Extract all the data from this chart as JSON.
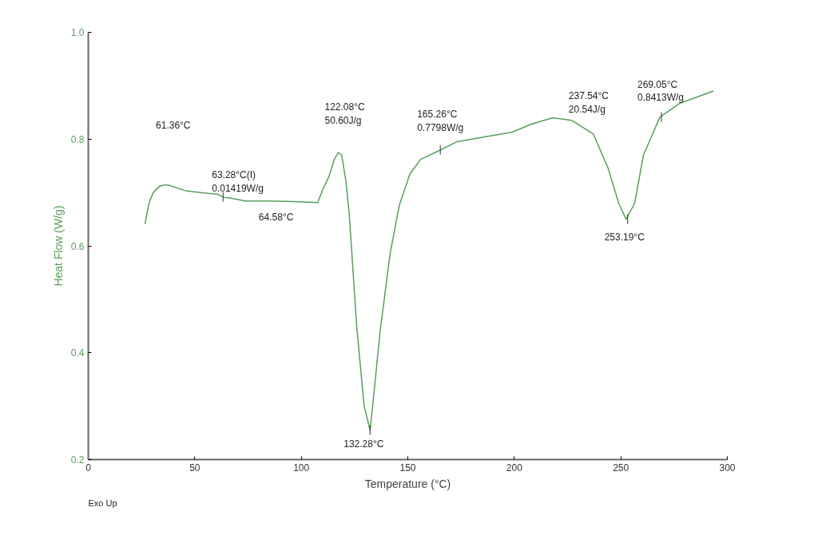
{
  "chart_data": {
    "type": "line",
    "xlabel": "Temperature (°C)",
    "ylabel": "Heat Flow (W/g)",
    "x": [
      26.6,
      28.5,
      30.5,
      33.6,
      35.5,
      37.5,
      46,
      55,
      57.5,
      60.6,
      63.7,
      66,
      74,
      86,
      97,
      107.7,
      110,
      113,
      115.5,
      117.4,
      119,
      121,
      122.5,
      126,
      129.5,
      132.3,
      133.5,
      137,
      141.7,
      146,
      151,
      156,
      165,
      173,
      199,
      208,
      218,
      227,
      237,
      244,
      249,
      252.5,
      256.5,
      260.6,
      268.3,
      277.6,
      293.4
    ],
    "series": [
      {
        "color": "#5a9e5a",
        "values": [
          0.641,
          0.68,
          0.7,
          0.712,
          0.714,
          0.714,
          0.703,
          0.699,
          0.698,
          0.697,
          0.691,
          0.69,
          0.684,
          0.684,
          0.683,
          0.681,
          0.705,
          0.73,
          0.762,
          0.775,
          0.77,
          0.72,
          0.66,
          0.45,
          0.3,
          0.255,
          0.3,
          0.44,
          0.586,
          0.676,
          0.735,
          0.762,
          0.779,
          0.795,
          0.813,
          0.828,
          0.84,
          0.835,
          0.81,
          0.746,
          0.68,
          0.65,
          0.68,
          0.77,
          0.841,
          0.867,
          0.89
        ]
      }
    ],
    "xlim": [
      0,
      300
    ],
    "xticks": [
      0,
      50,
      100,
      150,
      200,
      250,
      300
    ],
    "ylim": [
      0.2,
      1.0
    ],
    "yticks": [
      0.2,
      0.4,
      0.6,
      0.8,
      {
        "value": 1.0,
        "label": "1.0"
      }
    ],
    "grid": false,
    "marker": "none",
    "line_style": "solid",
    "annotations": [
      "61.36°C",
      {
        "text": "63.28°C(I)\n0.01419W/g",
        "x": 63.28,
        "y": 0.692
      },
      "64.58°C",
      "122.08°C\n50.60J/g",
      {
        "text": "132.28°C",
        "x": 132.28,
        "y": 0.255
      },
      {
        "text": "165.26°C\n0.7798W/g",
        "x": 165.26,
        "y": 0.7798
      },
      "237.54°C\n20.54J/g",
      {
        "text": "253.19°C",
        "x": 253.19,
        "y": 0.65
      },
      {
        "text": "269.05°C\n0.8413W/g",
        "x": 269.05,
        "y": 0.8413
      },
      "Exo Up"
    ]
  }
}
